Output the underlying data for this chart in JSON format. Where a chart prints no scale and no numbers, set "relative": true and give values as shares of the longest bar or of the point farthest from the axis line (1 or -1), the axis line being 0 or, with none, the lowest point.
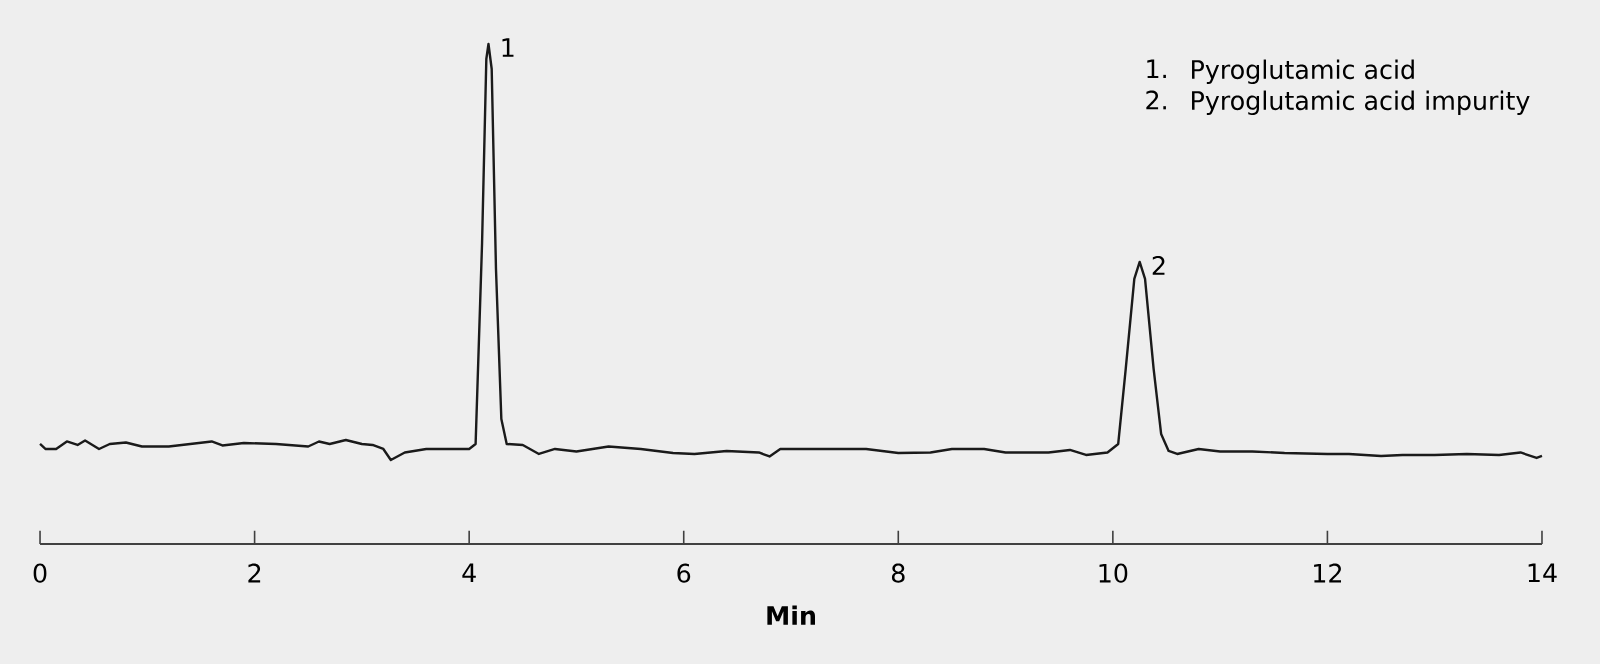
{
  "chart_data": {
    "type": "line",
    "relative": true,
    "xlabel": "Min",
    "xlim": [
      0,
      14
    ],
    "xticks": [
      0,
      2,
      4,
      6,
      8,
      10,
      12,
      14
    ],
    "grid": false,
    "annotations": [
      {
        "text": "1",
        "x": 4.18,
        "y": 1
      },
      {
        "text": "2",
        "x": 10.25,
        "y": 0.564
      },
      "1.",
      "Pyroglutamic acid",
      "2.",
      "Pyroglutamic acid impurity"
    ],
    "series": [
      {
        "color": "#1a1a1a",
        "x": [
          0,
          0.05,
          0.15,
          0.25,
          0.35,
          0.42,
          0.55,
          0.65,
          0.8,
          0.95,
          1.2,
          1.4,
          1.6,
          1.7,
          1.9,
          2.2,
          2.5,
          2.6,
          2.7,
          2.85,
          3.0,
          3.1,
          3.2,
          3.27,
          3.4,
          3.6,
          3.8,
          4.0,
          4.06,
          4.12,
          4.16,
          4.18,
          4.21,
          4.25,
          4.3,
          4.35,
          4.5,
          4.65,
          4.8,
          5.0,
          5.3,
          5.6,
          5.9,
          6.1,
          6.4,
          6.7,
          6.8,
          6.9,
          7.1,
          7.4,
          7.7,
          8.0,
          8.3,
          8.5,
          8.8,
          9.0,
          9.4,
          9.6,
          9.75,
          9.95,
          10.05,
          10.12,
          10.2,
          10.25,
          10.3,
          10.38,
          10.45,
          10.52,
          10.6,
          10.8,
          11.0,
          11.3,
          11.6,
          12.0,
          12.2,
          12.5,
          12.7,
          13.0,
          13.3,
          13.6,
          13.8,
          13.95,
          14.0
        ],
        "values": [
          0.2,
          0.19,
          0.19,
          0.205,
          0.198,
          0.207,
          0.19,
          0.2,
          0.203,
          0.195,
          0.195,
          0.2,
          0.205,
          0.197,
          0.202,
          0.2,
          0.195,
          0.205,
          0.2,
          0.208,
          0.2,
          0.198,
          0.19,
          0.168,
          0.183,
          0.19,
          0.19,
          0.19,
          0.2,
          0.6,
          0.97,
          1,
          0.95,
          0.55,
          0.25,
          0.2,
          0.198,
          0.18,
          0.19,
          0.185,
          0.195,
          0.19,
          0.182,
          0.18,
          0.186,
          0.183,
          0.175,
          0.19,
          0.19,
          0.19,
          0.19,
          0.182,
          0.183,
          0.19,
          0.19,
          0.183,
          0.183,
          0.188,
          0.178,
          0.183,
          0.2,
          0.35,
          0.53,
          0.564,
          0.53,
          0.35,
          0.22,
          0.186,
          0.18,
          0.19,
          0.185,
          0.185,
          0.182,
          0.18,
          0.18,
          0.176,
          0.178,
          0.178,
          0.18,
          0.178,
          0.183,
          0.172,
          0.176
        ]
      }
    ]
  }
}
